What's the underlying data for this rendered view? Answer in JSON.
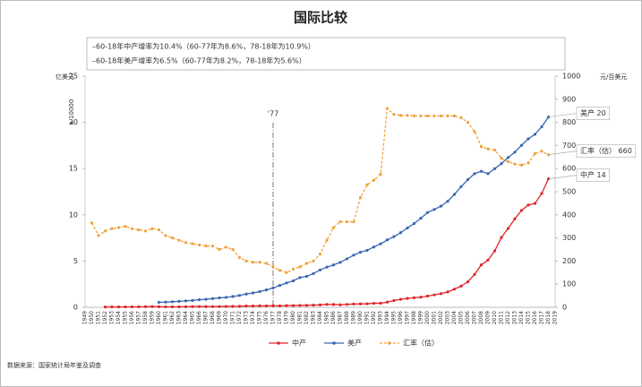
{
  "chart_data": {
    "type": "line",
    "title": "国际比较",
    "notes": [
      "–60-18年中产增率为10.4%（60-77年为8.6%，78-18年为10.9%）",
      "–60-18年美产增率为6.5%（60-77年为8.2%，78-18年为5.6%）"
    ],
    "y_label": "亿美元",
    "y_unit": "x 10000",
    "y2_label": "元/百美元",
    "source": "数据来源：国家统计局年鉴及调查",
    "vline": {
      "category": "1977",
      "label": "'77"
    },
    "categories": [
      "1949",
      "1950",
      "1951",
      "1952",
      "1953",
      "1954",
      "1955",
      "1956",
      "1957",
      "1958",
      "1959",
      "1960",
      "1961",
      "1962",
      "1963",
      "1964",
      "1965",
      "1966",
      "1967",
      "1968",
      "1969",
      "1970",
      "1971",
      "1972",
      "1973",
      "1974",
      "1975",
      "1976",
      "1977",
      "1978",
      "1979",
      "1980",
      "1981",
      "1982",
      "1983",
      "1984",
      "1985",
      "1986",
      "1987",
      "1988",
      "1989",
      "1990",
      "1991",
      "1992",
      "1993",
      "1994",
      "1995",
      "1996",
      "1997",
      "1998",
      "1999",
      "2000",
      "2001",
      "2002",
      "2003",
      "2004",
      "2005",
      "2006",
      "2007",
      "2008",
      "2009",
      "2010",
      "2011",
      "2012",
      "2013",
      "2014",
      "2015",
      "2016",
      "2017",
      "2018",
      "2019"
    ],
    "ylim": [
      0,
      25
    ],
    "yticks": [
      0,
      5,
      10,
      15,
      20,
      25
    ],
    "y2lim": [
      0,
      1000
    ],
    "y2ticks": [
      0,
      100,
      200,
      300,
      400,
      500,
      600,
      700,
      800,
      900,
      1000
    ],
    "grid": false,
    "series": [
      {
        "name": "中产",
        "color": "#e0262b",
        "dashed": false,
        "end_label": "中产 14",
        "values": [
          null,
          null,
          null,
          0.03,
          0.04,
          0.04,
          0.04,
          0.05,
          0.05,
          0.06,
          0.07,
          0.06,
          0.05,
          0.05,
          0.05,
          0.06,
          0.07,
          0.08,
          0.07,
          0.07,
          0.08,
          0.09,
          0.1,
          0.11,
          0.14,
          0.14,
          0.16,
          0.15,
          0.17,
          0.15,
          0.18,
          0.19,
          0.2,
          0.21,
          0.23,
          0.26,
          0.31,
          0.3,
          0.27,
          0.31,
          0.35,
          0.36,
          0.38,
          0.43,
          0.44,
          0.56,
          0.73,
          0.86,
          0.96,
          1.03,
          1.09,
          1.21,
          1.34,
          1.47,
          1.66,
          1.96,
          2.29,
          2.75,
          3.55,
          4.59,
          5.1,
          6.09,
          7.55,
          8.53,
          9.57,
          10.48,
          11.06,
          11.23,
          12.31,
          13.89,
          null
        ]
      },
      {
        "name": "美产",
        "color": "#3a66b0",
        "dashed": false,
        "end_label": "美产 20",
        "values": [
          null,
          null,
          null,
          null,
          null,
          null,
          null,
          null,
          null,
          null,
          null,
          0.54,
          0.56,
          0.6,
          0.64,
          0.69,
          0.74,
          0.82,
          0.86,
          0.94,
          1.02,
          1.07,
          1.16,
          1.28,
          1.43,
          1.55,
          1.69,
          1.88,
          2.09,
          2.36,
          2.63,
          2.86,
          3.21,
          3.34,
          3.64,
          4.04,
          4.34,
          4.58,
          4.86,
          5.24,
          5.64,
          5.96,
          6.16,
          6.52,
          6.86,
          7.29,
          7.64,
          8.07,
          8.58,
          9.06,
          9.63,
          10.25,
          10.58,
          10.94,
          11.46,
          12.21,
          13.04,
          13.81,
          14.45,
          14.71,
          14.45,
          14.99,
          15.54,
          16.2,
          16.78,
          17.52,
          18.22,
          18.71,
          19.52,
          20.58,
          null
        ]
      },
      {
        "name": "汇率（估）",
        "color": "#f0a23a",
        "dashed": true,
        "axis": "y2",
        "end_label": "汇率（估） 660",
        "values": [
          null,
          365,
          310,
          330,
          340,
          345,
          350,
          340,
          335,
          330,
          340,
          335,
          310,
          300,
          290,
          280,
          275,
          270,
          265,
          265,
          250,
          260,
          250,
          215,
          200,
          195,
          195,
          190,
          175,
          160,
          150,
          165,
          175,
          190,
          200,
          230,
          290,
          345,
          370,
          370,
          370,
          475,
          530,
          550,
          575,
          860,
          835,
          830,
          830,
          828,
          828,
          828,
          828,
          828,
          828,
          828,
          820,
          800,
          760,
          695,
          685,
          680,
          645,
          630,
          620,
          615,
          625,
          665,
          675,
          660,
          null
        ]
      }
    ]
  }
}
